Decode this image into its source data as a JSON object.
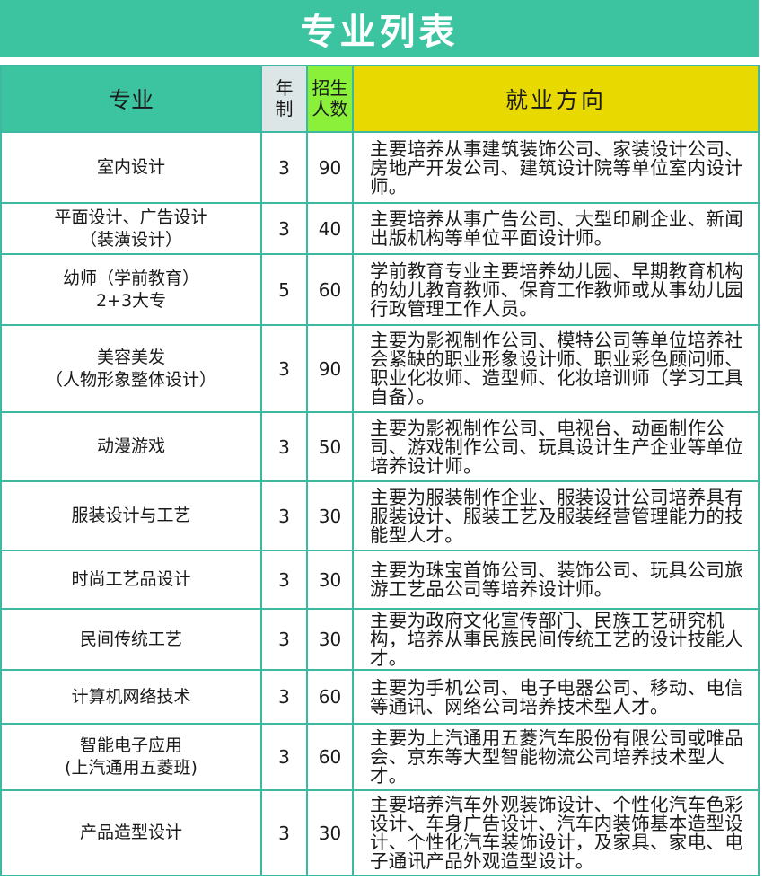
{
  "title": "专业列表",
  "headers": {
    "major": "专业",
    "years_1": "年",
    "years_2": "制",
    "count_1": "招生",
    "count_2": "人数",
    "career": "就业方向"
  },
  "colors": {
    "title_bar": "#3cc4a1",
    "major_header": "#3cc4a1",
    "years_header": "#dde6e6",
    "count_header": "#8af03a",
    "career_header": "#e8d900",
    "border": "#3cb9a0"
  },
  "rows": [
    {
      "major_1": "室内设计",
      "major_2": "",
      "years": "3",
      "count": "90",
      "career": "主要培养从事建筑装饰公司、家装设计公司、房地产开发公司、建筑设计院等单位室内设计师。"
    },
    {
      "major_1": "平面设计、广告设计",
      "major_2": "（装潢设计）",
      "years": "3",
      "count": "40",
      "career": "主要培养从事广告公司、大型印刷企业、新闻出版机构等单位平面设计师。"
    },
    {
      "major_1": "幼师（学前教育）",
      "major_2": "2+3大专",
      "years": "5",
      "count": "60",
      "career": "学前教育专业主要培养幼儿园、早期教育机构的幼儿教育教师、保育工作教师或从事幼儿园行政管理工作人员。"
    },
    {
      "major_1": "美容美发",
      "major_2": "（人物形象整体设计）",
      "years": "3",
      "count": "90",
      "career": "主要为影视制作公司、模特公司等单位培养社会紧缺的职业形象设计师、职业彩色顾问师、职业化妆师、造型师、化妆培训师（学习工具自备）。"
    },
    {
      "major_1": "动漫游戏",
      "major_2": "",
      "years": "3",
      "count": "50",
      "career": "主要为影视制作公司、电视台、动画制作公司、游戏制作公司、玩具设计生产企业等单位培养设计师。"
    },
    {
      "major_1": "服装设计与工艺",
      "major_2": "",
      "years": "3",
      "count": "30",
      "career": "主要为服装制作企业、服装设计公司培养具有服装设计、服装工艺及服装经营管理能力的技能型人才。"
    },
    {
      "major_1": "时尚工艺品设计",
      "major_2": "",
      "years": "3",
      "count": "30",
      "career": "主要为珠宝首饰公司、装饰公司、玩具公司旅游工艺品公司等培养设计师。"
    },
    {
      "major_1": "民间传统工艺",
      "major_2": "",
      "years": "3",
      "count": "30",
      "career": "主要为政府文化宣传部门、民族工艺研究机构，培养从事民族民间传统工艺的设计技能人才。"
    },
    {
      "major_1": "计算机网络技术",
      "major_2": "",
      "years": "3",
      "count": "60",
      "career": "主要为手机公司、电子电器公司、移动、电信等通讯、网络公司培养技术型人才。"
    },
    {
      "major_1": "智能电子应用",
      "major_2": "(上汽通用五菱班)",
      "years": "3",
      "count": "60",
      "career": "主要为上汽通用五菱汽车股份有限公司或唯品会、京东等大型智能物流公司培养技术型人才。"
    },
    {
      "major_1": "产品造型设计",
      "major_2": "",
      "years": "3",
      "count": "30",
      "career": "主要培养汽车外观装饰设计、个性化汽车色彩设计、车身广告设计、汽车内装饰基本造型设计、个性化汽车装饰设计，及家具、家电、电子通讯产品外观造型设计。"
    }
  ]
}
